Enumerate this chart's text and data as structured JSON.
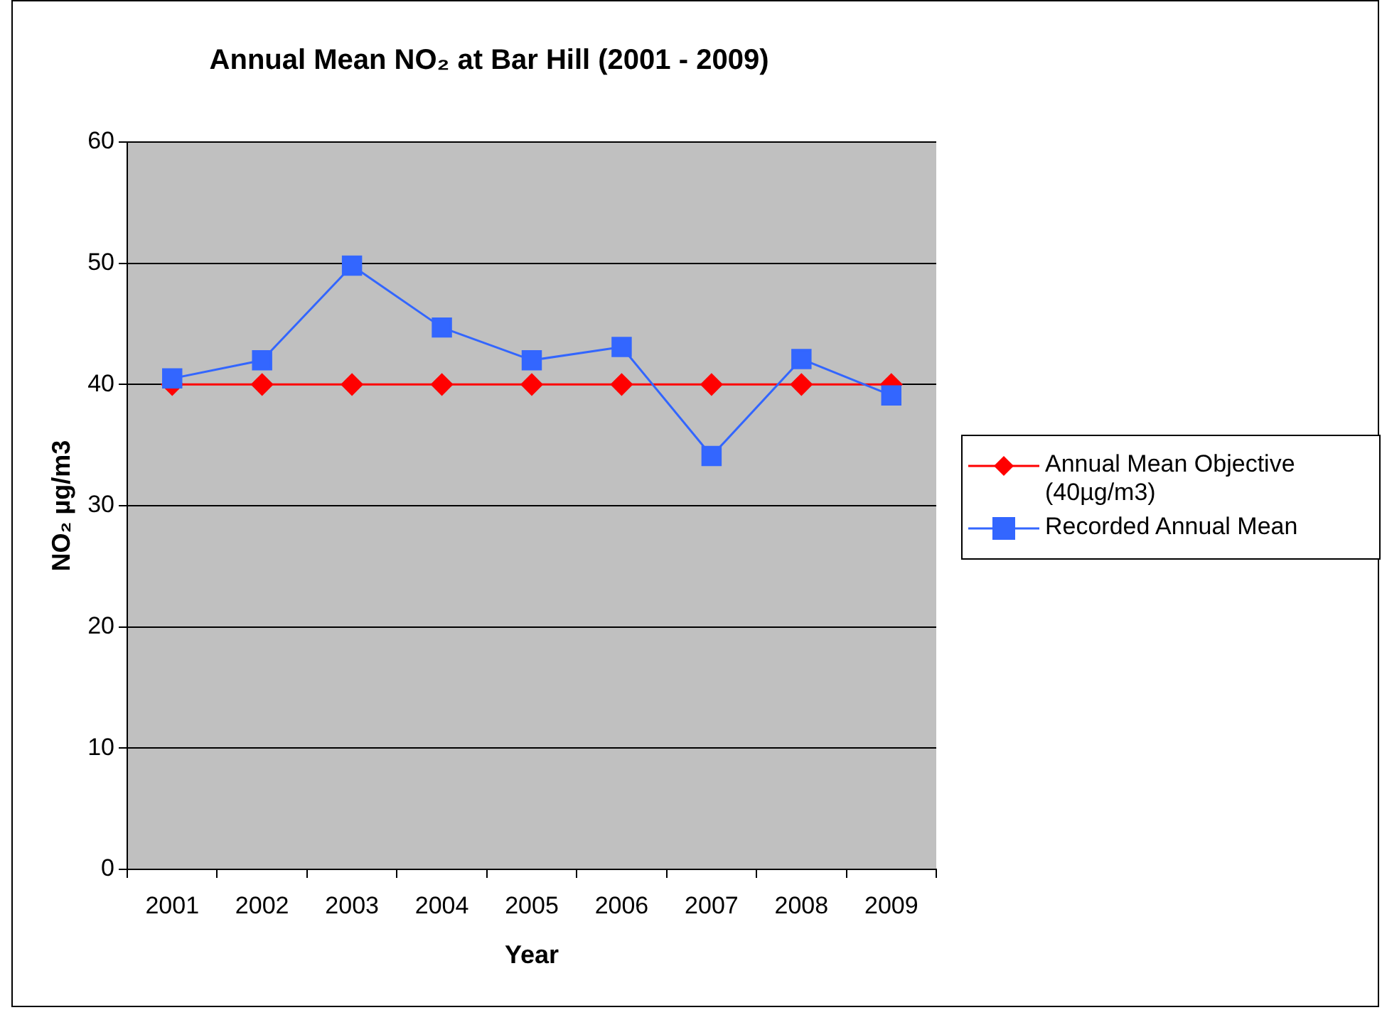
{
  "chart_data": {
    "type": "line",
    "title": "Annual Mean NO₂ at Bar Hill (2001 - 2009)",
    "xlabel": "Year",
    "ylabel": "NO₂ µg/m3",
    "categories": [
      "2001",
      "2002",
      "2003",
      "2004",
      "2005",
      "2006",
      "2007",
      "2008",
      "2009"
    ],
    "series": [
      {
        "name": "Annual Mean Objective (40µg/m3)",
        "color": "#ff0000",
        "marker": "diamond",
        "values": [
          40,
          40,
          40,
          40,
          40,
          40,
          40,
          40,
          40
        ]
      },
      {
        "name": "Recorded Annual Mean",
        "color": "#3366ff",
        "marker": "square",
        "values": [
          40.5,
          42,
          49.8,
          44.7,
          42,
          43.1,
          34.1,
          42.1,
          39.1
        ]
      }
    ],
    "ylim": [
      0,
      60
    ],
    "yticks": [
      0,
      10,
      20,
      30,
      40,
      50,
      60
    ],
    "grid": "y",
    "legend": "right",
    "line_style": "solid"
  }
}
